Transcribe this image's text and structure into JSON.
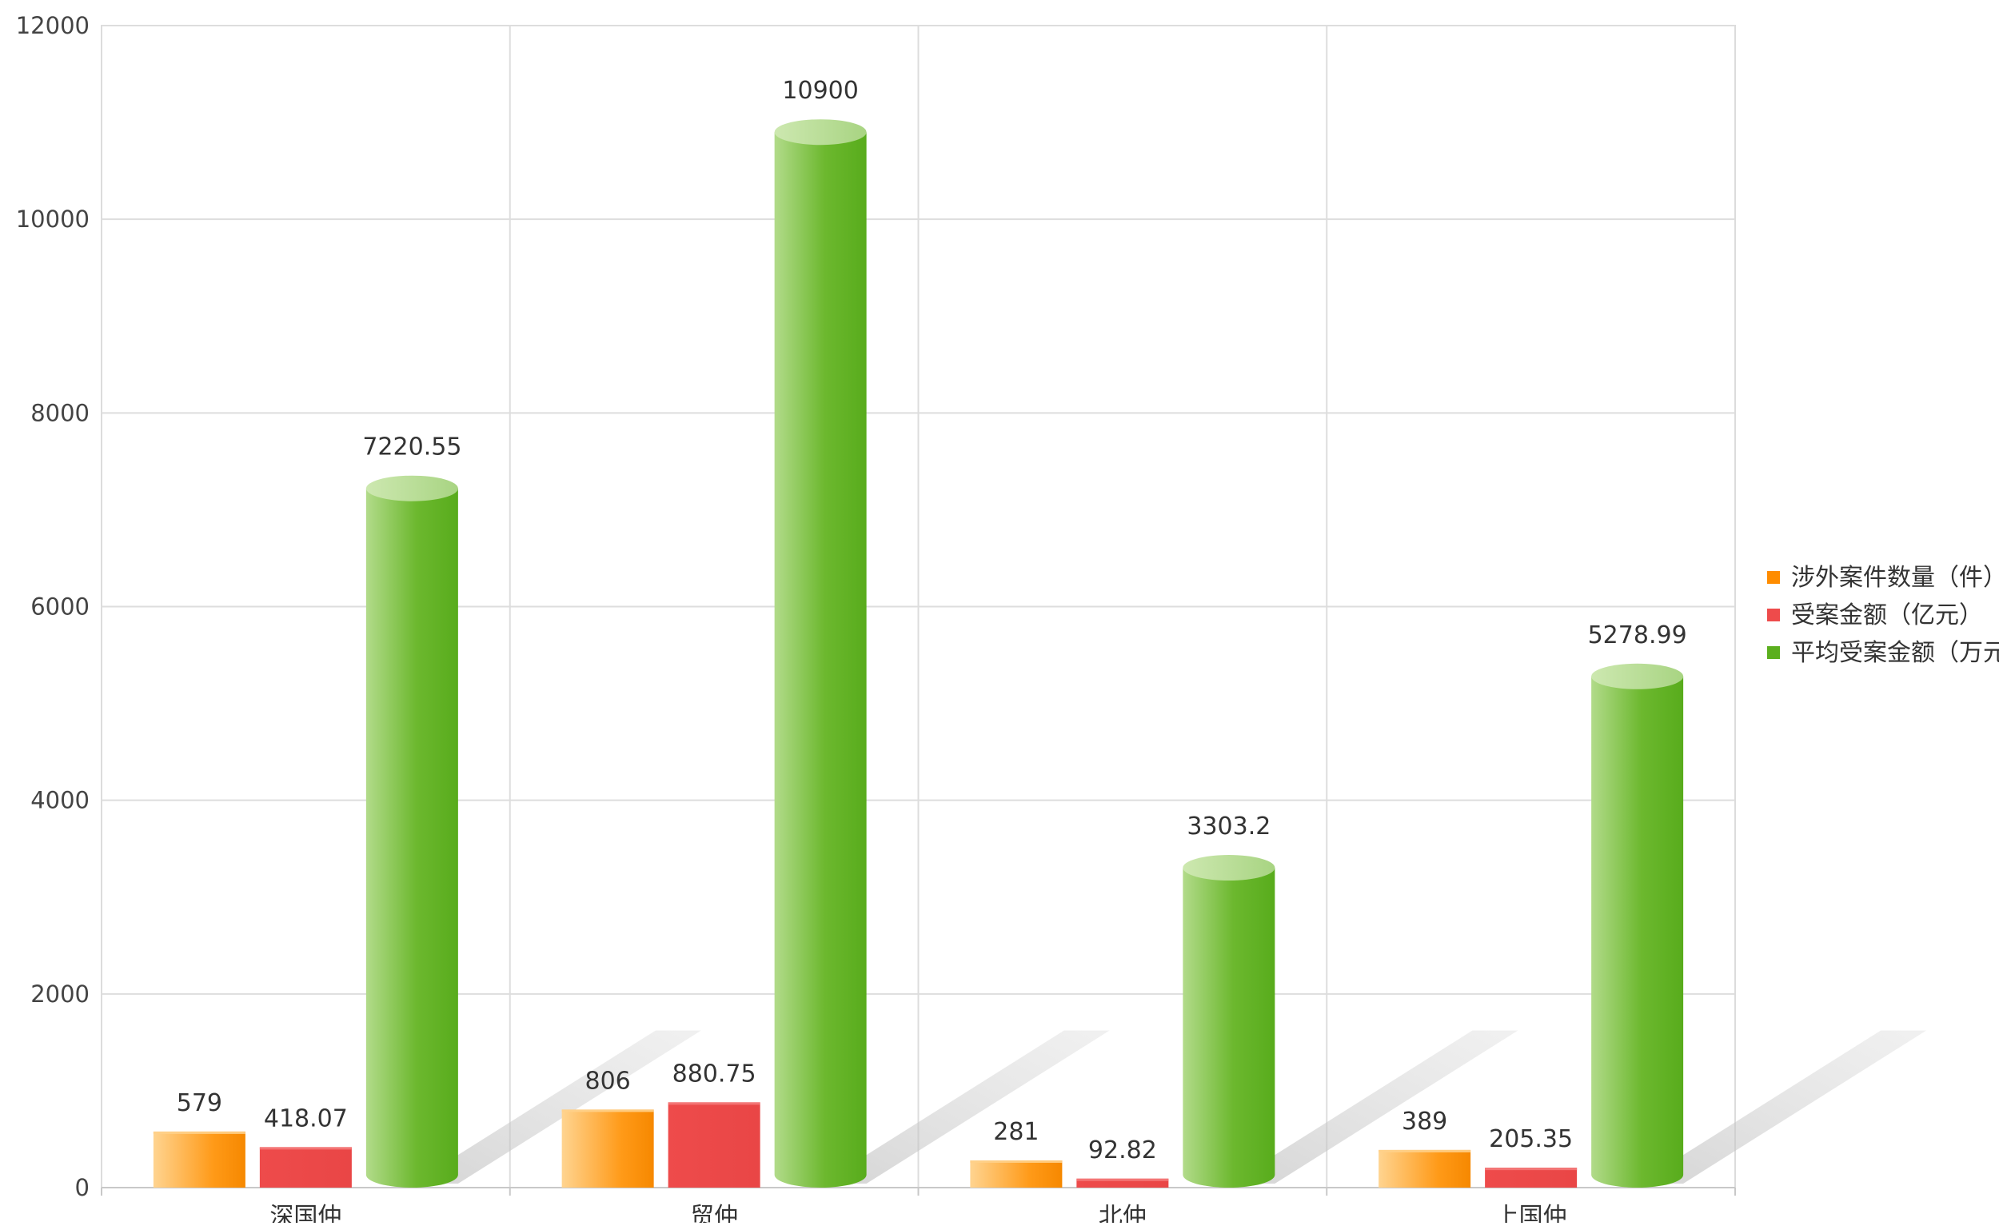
{
  "chart_data": {
    "type": "bar",
    "bar_style": "3d-cylinder",
    "title": "",
    "xlabel": "",
    "ylabel": "",
    "ylim": [
      0,
      12000
    ],
    "y_ticks": [
      0,
      2000,
      4000,
      6000,
      8000,
      10000,
      12000
    ],
    "grid": true,
    "categories": [
      "深国仲",
      "贸仲",
      "北仲",
      "上国仲"
    ],
    "legend_position": "right",
    "series": [
      {
        "name": "涉外案件数量（件）",
        "values": [
          579,
          806,
          281,
          389
        ],
        "labels": [
          "579",
          "806",
          "281",
          "389"
        ],
        "color": "#FF8C00",
        "color_light": "#FFD08A",
        "shape": "box"
      },
      {
        "name": "受案金额（亿元）",
        "values": [
          418.07,
          880.75,
          92.82,
          205.35
        ],
        "labels": [
          "418.07",
          "880.75",
          "92.82",
          "205.35"
        ],
        "color": "#EE4B4B",
        "color_light": "#F47A7A",
        "shape": "box"
      },
      {
        "name": "平均受案金额（万元）",
        "values": [
          7220.55,
          10900,
          3303.2,
          5278.99
        ],
        "labels": [
          "7220.55",
          "10900",
          "3303.2",
          "5278.99"
        ],
        "color": "#5BAF1E",
        "color_light": "#B4DC8C",
        "shape": "cylinder"
      }
    ]
  }
}
